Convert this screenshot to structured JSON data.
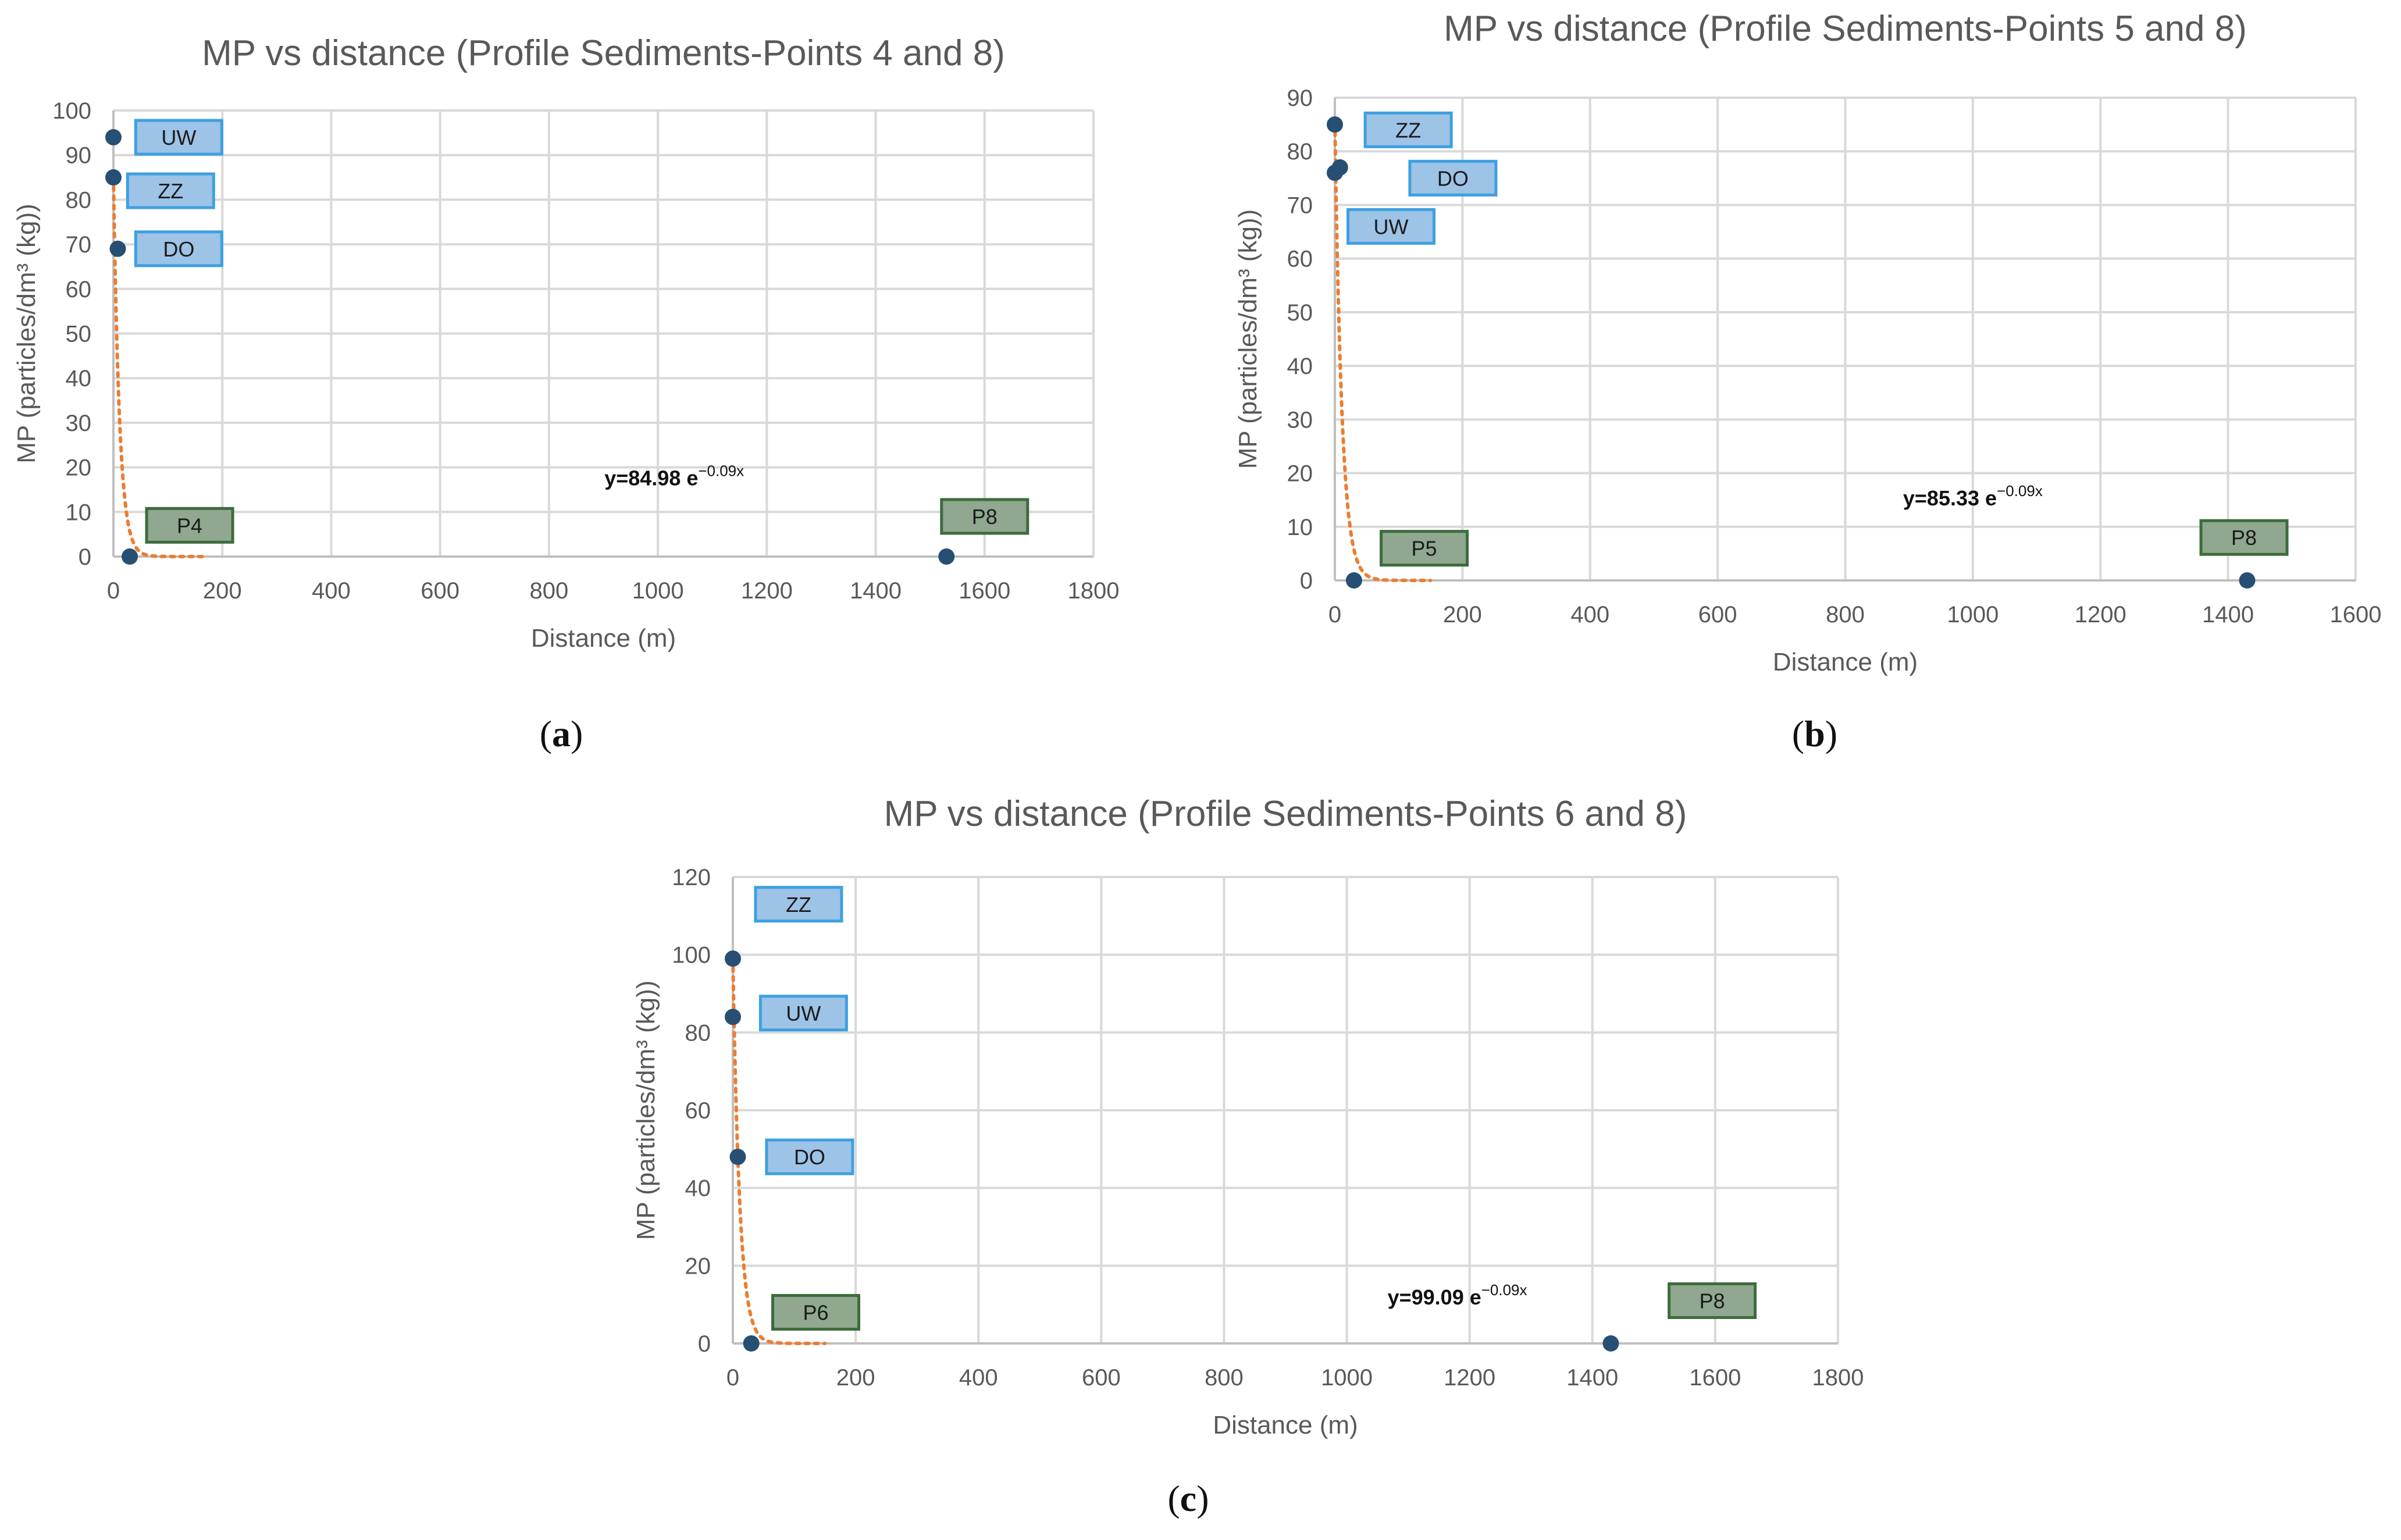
{
  "chart_data": [
    {
      "type": "scatter",
      "panel": "a",
      "title": "MP vs distance (Profile Sediments-Points 4 and 8)",
      "xlabel": "Distance (m)",
      "ylabel": "MP (particles/dm³ (kg))",
      "xlim": [
        0,
        1800
      ],
      "ylim": [
        0,
        100
      ],
      "xticks": [
        0,
        200,
        400,
        600,
        800,
        1000,
        1200,
        1400,
        1600,
        1800
      ],
      "yticks": [
        0,
        10,
        20,
        30,
        40,
        50,
        60,
        70,
        80,
        90,
        100
      ],
      "grid": true,
      "points": [
        {
          "x": 0,
          "y": 94
        },
        {
          "x": 0,
          "y": 85
        },
        {
          "x": 8,
          "y": 69
        },
        {
          "x": 30,
          "y": 0
        },
        {
          "x": 1530,
          "y": 0
        }
      ],
      "labels": [
        {
          "text": "UW",
          "style": "blue",
          "x": 120,
          "y": 94
        },
        {
          "text": "ZZ",
          "style": "blue",
          "x": 105,
          "y": 82
        },
        {
          "text": "DO",
          "style": "blue",
          "x": 120,
          "y": 69
        },
        {
          "text": "P4",
          "style": "green",
          "x": 140,
          "y": 7
        },
        {
          "text": "P8",
          "style": "green",
          "x": 1600,
          "y": 9
        }
      ],
      "trendline": {
        "type": "exponential",
        "a": 84.98,
        "b": -0.09,
        "x_end": 170
      },
      "equation": {
        "prefix": "y=84.98 e",
        "exponent": "−0.09x",
        "x": 1030,
        "y": 16
      }
    },
    {
      "type": "scatter",
      "panel": "b",
      "title": "MP vs distance (Profile Sediments-Points 5 and 8)",
      "xlabel": "Distance (m)",
      "ylabel": "MP (particles/dm³ (kg))",
      "xlim": [
        0,
        1600
      ],
      "ylim": [
        0,
        90
      ],
      "xticks": [
        0,
        200,
        400,
        600,
        800,
        1000,
        1200,
        1400,
        1600
      ],
      "yticks": [
        0,
        10,
        20,
        30,
        40,
        50,
        60,
        70,
        80,
        90
      ],
      "grid": true,
      "points": [
        {
          "x": 0,
          "y": 85
        },
        {
          "x": 0,
          "y": 76
        },
        {
          "x": 8,
          "y": 77
        },
        {
          "x": 30,
          "y": 0
        },
        {
          "x": 1430,
          "y": 0
        }
      ],
      "labels": [
        {
          "text": "ZZ",
          "style": "blue",
          "x": 115,
          "y": 84
        },
        {
          "text": "DO",
          "style": "blue",
          "x": 185,
          "y": 75
        },
        {
          "text": "UW",
          "style": "blue",
          "x": 88,
          "y": 66
        },
        {
          "text": "P5",
          "style": "green",
          "x": 140,
          "y": 6
        },
        {
          "text": "P8",
          "style": "green",
          "x": 1425,
          "y": 8
        }
      ],
      "trendline": {
        "type": "exponential",
        "a": 85.33,
        "b": -0.09,
        "x_end": 150
      },
      "equation": {
        "prefix": "y=85.33 e",
        "exponent": "−0.09x",
        "x": 1000,
        "y": 14
      }
    },
    {
      "type": "scatter",
      "panel": "c",
      "title": "MP vs distance (Profile Sediments-Points 6 and 8)",
      "xlabel": "Distance (m)",
      "ylabel": "MP (particles/dm³ (kg))",
      "xlim": [
        0,
        1800
      ],
      "ylim": [
        0,
        120
      ],
      "xticks": [
        0,
        200,
        400,
        600,
        800,
        1000,
        1200,
        1400,
        1600,
        1800
      ],
      "yticks": [
        0,
        20,
        40,
        60,
        80,
        100,
        120
      ],
      "grid": true,
      "points": [
        {
          "x": 0,
          "y": 99
        },
        {
          "x": 0,
          "y": 84
        },
        {
          "x": 8,
          "y": 48
        },
        {
          "x": 30,
          "y": 0
        },
        {
          "x": 1430,
          "y": 0
        }
      ],
      "labels": [
        {
          "text": "ZZ",
          "style": "blue",
          "x": 107,
          "y": 113
        },
        {
          "text": "UW",
          "style": "blue",
          "x": 115,
          "y": 85
        },
        {
          "text": "DO",
          "style": "blue",
          "x": 125,
          "y": 48
        },
        {
          "text": "P6",
          "style": "green",
          "x": 135,
          "y": 8
        },
        {
          "text": "P8",
          "style": "green",
          "x": 1595,
          "y": 11
        }
      ],
      "trendline": {
        "type": "exponential",
        "a": 99.09,
        "b": -0.09,
        "x_end": 150
      },
      "equation": {
        "prefix": "y=99.09 e",
        "exponent": "−0.09x",
        "x": 1180,
        "y": 10
      }
    }
  ],
  "panel_letters": {
    "a": "a",
    "b": "b",
    "c": "c"
  }
}
